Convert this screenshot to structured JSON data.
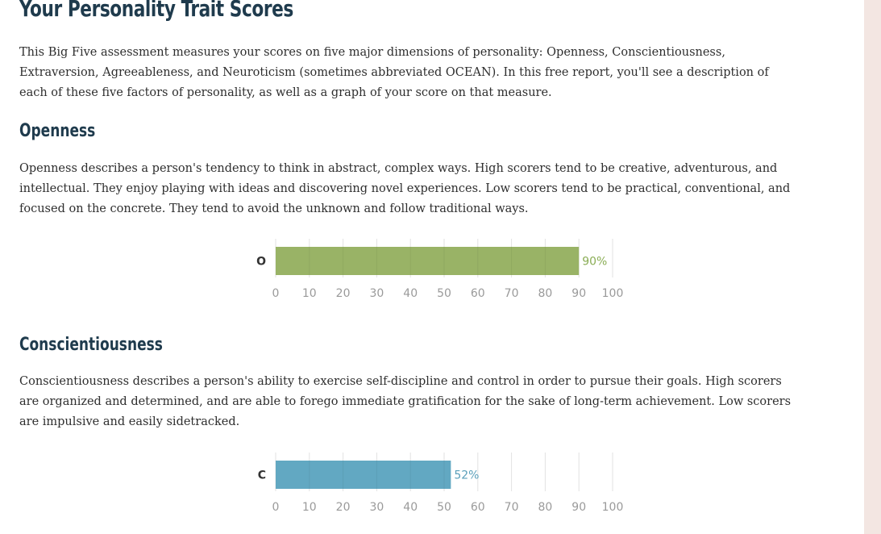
{
  "page": {
    "title": "Your Personality Trait Scores",
    "intro": "This Big Five assessment measures your scores on five major dimensions of personality: Openness, Conscientiousness, Extraversion, Agreeableness, and Neuroticism (sometimes abbreviated OCEAN). In this free report, you'll see a description of each of these five factors of personality, as well as a graph of your score on that measure."
  },
  "sections": [
    {
      "title": "Openness",
      "description": "Openness describes a person's tendency to think in abstract, complex ways. High scorers tend to be creative, adventurous, and intellectual. They enjoy playing with ideas and discovering novel experiences. Low scorers tend to be practical, conventional, and focused on the concrete. They tend to avoid the unknown and follow traditional ways."
    },
    {
      "title": "Conscientiousness",
      "description": "Conscientiousness describes a person's ability to exercise self-discipline and control in order to pursue their goals. High scorers are organized and determined, and are able to forego immediate gratification for the sake of long-term achievement. Low scorers are impulsive and easily sidetracked."
    }
  ],
  "chart_data": [
    {
      "type": "bar",
      "orientation": "horizontal",
      "categories": [
        "O"
      ],
      "values": [
        90
      ],
      "value_labels": [
        "90%"
      ],
      "xlim": [
        0,
        100
      ],
      "x_ticks": [
        0,
        10,
        20,
        30,
        40,
        50,
        60,
        70,
        80,
        90,
        100
      ],
      "grid": true,
      "bar_color": "#99b366",
      "label_color": "#8aad55"
    },
    {
      "type": "bar",
      "orientation": "horizontal",
      "categories": [
        "C"
      ],
      "values": [
        52
      ],
      "value_labels": [
        "52%"
      ],
      "xlim": [
        0,
        100
      ],
      "x_ticks": [
        0,
        10,
        20,
        30,
        40,
        50,
        60,
        70,
        80,
        90,
        100
      ],
      "grid": true,
      "bar_color": "#62a8c2",
      "label_color": "#5a9fba"
    }
  ]
}
